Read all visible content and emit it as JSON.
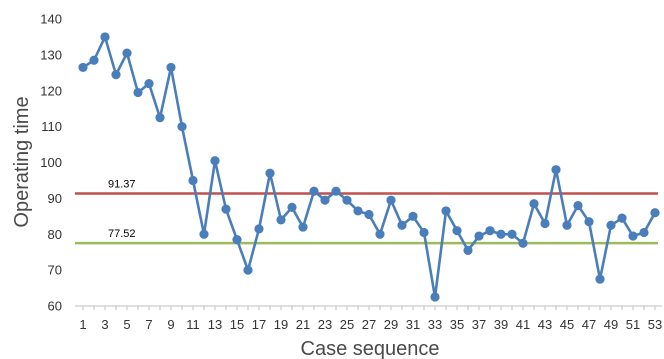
{
  "chart_data": {
    "type": "line",
    "xlabel": "Case sequence",
    "ylabel": "Operating time",
    "ylim": [
      60,
      140
    ],
    "yticks": [
      60,
      70,
      80,
      90,
      100,
      110,
      120,
      130,
      140
    ],
    "xticks": [
      1,
      3,
      5,
      7,
      9,
      11,
      13,
      15,
      17,
      19,
      21,
      23,
      25,
      27,
      29,
      31,
      33,
      35,
      37,
      39,
      41,
      43,
      45,
      47,
      49,
      51,
      53
    ],
    "grid": false,
    "legend": "none",
    "x": [
      1,
      2,
      3,
      4,
      5,
      6,
      7,
      8,
      9,
      10,
      11,
      12,
      13,
      14,
      15,
      16,
      17,
      18,
      19,
      20,
      21,
      22,
      23,
      24,
      25,
      26,
      27,
      28,
      29,
      30,
      31,
      32,
      33,
      34,
      35,
      36,
      37,
      38,
      39,
      40,
      41,
      42,
      43,
      44,
      45,
      46,
      47,
      48,
      49,
      50,
      51,
      52,
      53
    ],
    "y": [
      126.5,
      128.5,
      135,
      124.5,
      130.5,
      119.5,
      122,
      112.5,
      126.5,
      110,
      95,
      80,
      100.5,
      87,
      78.5,
      70,
      81.5,
      97,
      84,
      87.5,
      82,
      92,
      89.5,
      92,
      89.5,
      86.5,
      85.5,
      80,
      89.5,
      82.5,
      85,
      80.5,
      62.5,
      86.5,
      81,
      75.5,
      79.5,
      81,
      80,
      80,
      77.5,
      88.5,
      83,
      98,
      82.5,
      88,
      83.5,
      67.5,
      82.5,
      84.5,
      79.5,
      80.5,
      86
    ],
    "series_color": "#4a7ebb",
    "reference_lines": [
      {
        "value": 91.37,
        "label": "91.37",
        "color": "#c0504d"
      },
      {
        "value": 77.52,
        "label": "77.52",
        "color": "#9bbb59"
      }
    ]
  }
}
